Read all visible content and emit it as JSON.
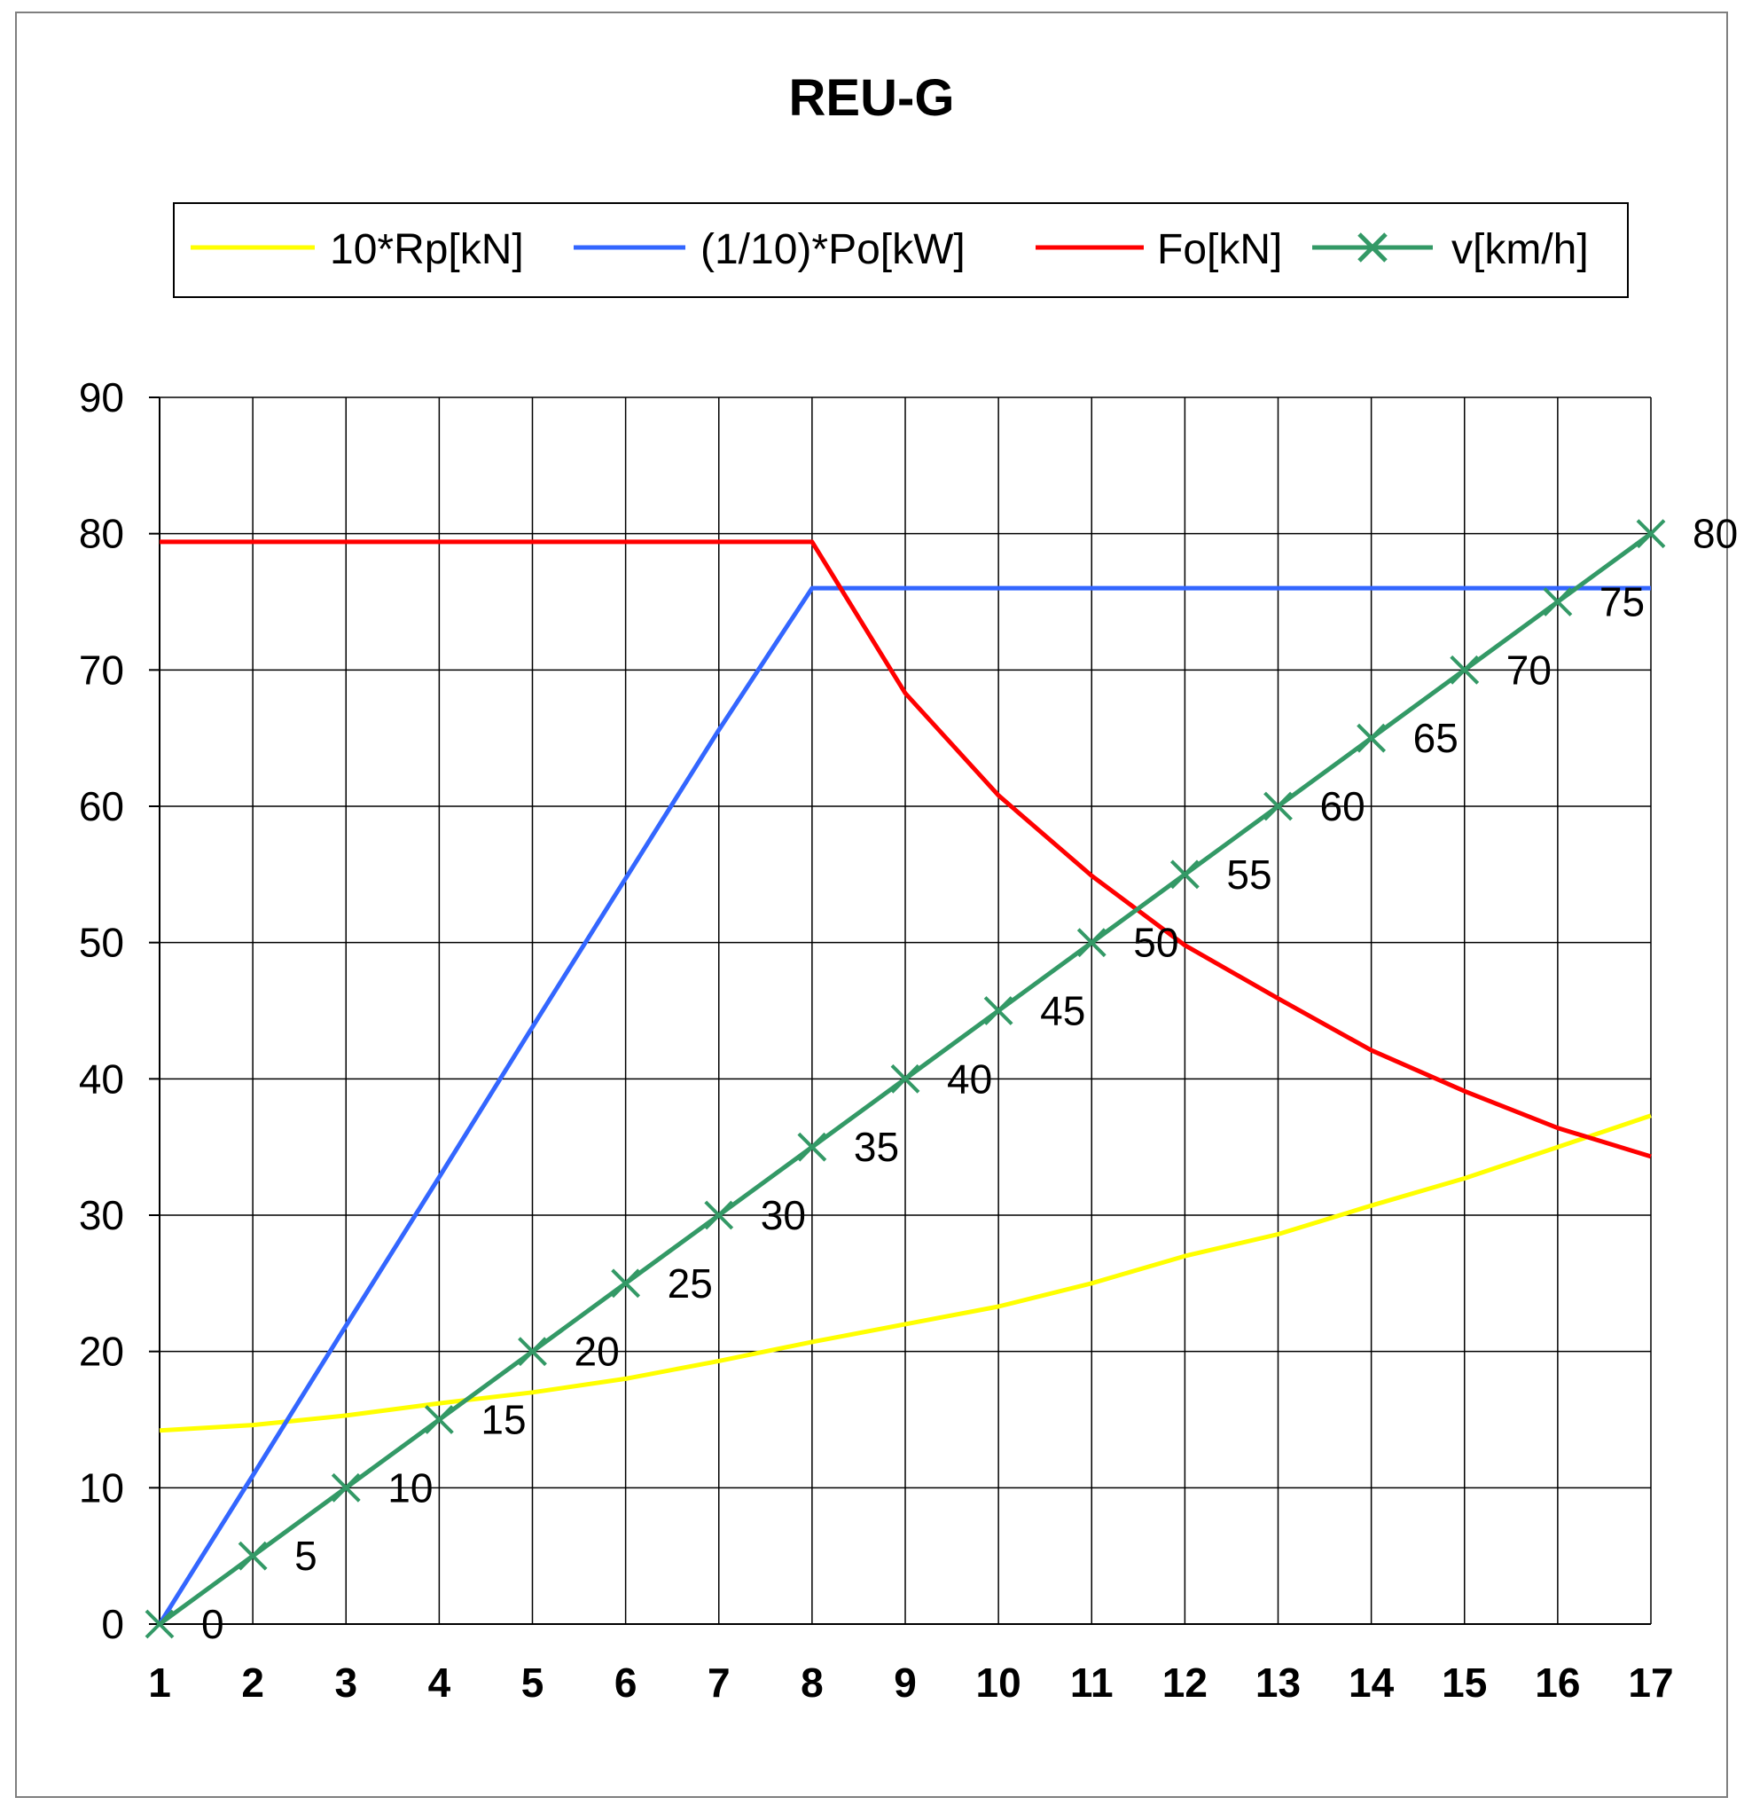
{
  "chart_data": {
    "type": "line",
    "title": "REU-G",
    "x": [
      1,
      2,
      3,
      4,
      5,
      6,
      7,
      8,
      9,
      10,
      11,
      12,
      13,
      14,
      15,
      16,
      17
    ],
    "ylim": [
      0,
      90
    ],
    "yticks": [
      0,
      10,
      20,
      30,
      40,
      50,
      60,
      70,
      80,
      90
    ],
    "grid": true,
    "legend_position": "top",
    "series": [
      {
        "name": "10*Rp[kN]",
        "color": "#ffff00",
        "values": [
          14.2,
          14.6,
          15.3,
          16.2,
          17.0,
          18.0,
          19.3,
          20.7,
          22.0,
          23.3,
          25.0,
          27.0,
          28.6,
          30.7,
          32.7,
          35.0,
          37.3
        ]
      },
      {
        "name": "(1/10)*Po[kW]",
        "color": "#3366ff",
        "values": [
          0,
          10.9,
          21.9,
          32.8,
          43.8,
          54.7,
          65.6,
          76,
          76,
          76,
          76,
          76,
          76,
          76,
          76,
          76,
          76
        ]
      },
      {
        "name": "Fo[kN]",
        "color": "#ff0000",
        "values": [
          79.4,
          79.4,
          79.4,
          79.4,
          79.4,
          79.4,
          79.4,
          79.4,
          68.3,
          60.8,
          54.9,
          49.8,
          45.9,
          42.1,
          39.1,
          36.4,
          34.3
        ]
      },
      {
        "name": "v[km/h]",
        "color": "#339966",
        "marker": "x",
        "values": [
          0,
          5,
          10,
          15,
          20,
          25,
          30,
          35,
          40,
          45,
          50,
          55,
          60,
          65,
          70,
          75,
          80
        ],
        "data_labels": [
          "0",
          "5",
          "10",
          "15",
          "20",
          "25",
          "30",
          "35",
          "40",
          "45",
          "50",
          "55",
          "60",
          "65",
          "70",
          "75",
          "80"
        ]
      }
    ]
  }
}
